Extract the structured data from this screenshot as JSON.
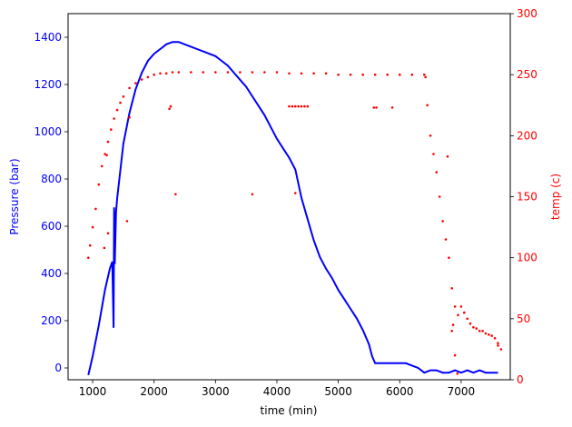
{
  "chart_data": {
    "type": "line",
    "xlabel": "time (min)",
    "xlim": [
      600,
      7800
    ],
    "x_ticks": [
      1000,
      2000,
      3000,
      4000,
      5000,
      6000,
      7000
    ],
    "left_axis": {
      "label": "Pressure (bar)",
      "color": "#0000ff",
      "ylim": [
        -50,
        1500
      ],
      "ticks": [
        0,
        200,
        400,
        600,
        800,
        1000,
        1200,
        1400
      ]
    },
    "right_axis": {
      "label": "temp (c)",
      "color": "#ff0000",
      "ylim": [
        0,
        300
      ],
      "ticks": [
        0,
        50,
        100,
        150,
        200,
        250,
        300
      ]
    },
    "series": [
      {
        "axis": "left",
        "color": "#0000ff",
        "style": "line",
        "x": [
          930,
          1000,
          1100,
          1200,
          1280,
          1320,
          1340,
          1350,
          1360,
          1380,
          1400,
          1500,
          1600,
          1700,
          1800,
          1900,
          2000,
          2100,
          2200,
          2300,
          2400,
          2500,
          2600,
          2700,
          2800,
          2900,
          3000,
          3100,
          3200,
          3300,
          3400,
          3500,
          3600,
          3700,
          3800,
          3900,
          4000,
          4100,
          4200,
          4300,
          4400,
          4500,
          4600,
          4700,
          4800,
          4900,
          5000,
          5100,
          5200,
          5300,
          5400,
          5500,
          5550,
          5600,
          5700,
          5800,
          5900,
          6000,
          6100,
          6200,
          6300,
          6400,
          6500,
          6600,
          6700,
          6800,
          6900,
          7000,
          7100,
          7200,
          7300,
          7400,
          7500,
          7600
        ],
        "y": [
          -30,
          50,
          180,
          330,
          420,
          450,
          170,
          680,
          440,
          660,
          720,
          950,
          1080,
          1180,
          1250,
          1300,
          1330,
          1350,
          1370,
          1380,
          1380,
          1370,
          1360,
          1350,
          1340,
          1330,
          1320,
          1300,
          1280,
          1250,
          1220,
          1190,
          1150,
          1110,
          1070,
          1020,
          970,
          930,
          890,
          840,
          720,
          630,
          540,
          470,
          420,
          380,
          330,
          290,
          250,
          210,
          160,
          100,
          50,
          20,
          20,
          20,
          20,
          20,
          20,
          10,
          0,
          -20,
          -10,
          -10,
          -20,
          -20,
          -10,
          -20,
          -10,
          -20,
          -10,
          -20,
          -20,
          -20
        ]
      },
      {
        "axis": "right",
        "color": "#ff0000",
        "style": "dots",
        "x": [
          930,
          960,
          1000,
          1050,
          1100,
          1150,
          1200,
          1250,
          1300,
          1350,
          1400,
          1450,
          1500,
          1600,
          1700,
          1800,
          1900,
          2000,
          2100,
          2200,
          2300,
          2400,
          2600,
          2800,
          3000,
          3200,
          3400,
          3600,
          3800,
          4000,
          4200,
          4400,
          4600,
          4800,
          5000,
          5200,
          5400,
          5600,
          5800,
          6000,
          6200,
          6400,
          6420,
          6450,
          6500,
          6550,
          6600,
          6650,
          6700,
          6750,
          6800,
          6850,
          6900,
          6950,
          7000,
          7050,
          7100,
          7150,
          7200,
          7250,
          7300,
          7350,
          7400,
          7450,
          7500,
          7550,
          7600,
          7650,
          1190,
          1230,
          1250,
          1560,
          1600,
          2250,
          2270,
          2350,
          3600,
          4200,
          4250,
          4300,
          4350,
          4400,
          4450,
          4500,
          4300,
          5580,
          5620,
          5880,
          6780,
          6850,
          6900,
          6870,
          6940,
          7600
        ],
        "y": [
          100,
          110,
          125,
          140,
          160,
          175,
          185,
          195,
          205,
          214,
          221,
          227,
          232,
          239,
          243,
          246,
          248,
          250,
          251,
          251,
          252,
          252,
          252,
          252,
          252,
          252,
          252,
          252,
          252,
          252,
          251,
          251,
          251,
          251,
          250,
          250,
          250,
          250,
          250,
          250,
          250,
          250,
          248,
          225,
          200,
          185,
          170,
          150,
          130,
          115,
          100,
          75,
          60,
          53,
          60,
          55,
          50,
          46,
          43,
          42,
          40,
          40,
          38,
          37,
          36,
          34,
          30,
          25,
          108,
          184,
          120,
          130,
          215,
          222,
          224,
          152,
          152,
          224,
          224,
          224,
          224,
          224,
          224,
          224,
          153,
          223,
          223,
          223,
          183,
          40,
          20,
          45,
          5,
          28
        ]
      }
    ]
  }
}
